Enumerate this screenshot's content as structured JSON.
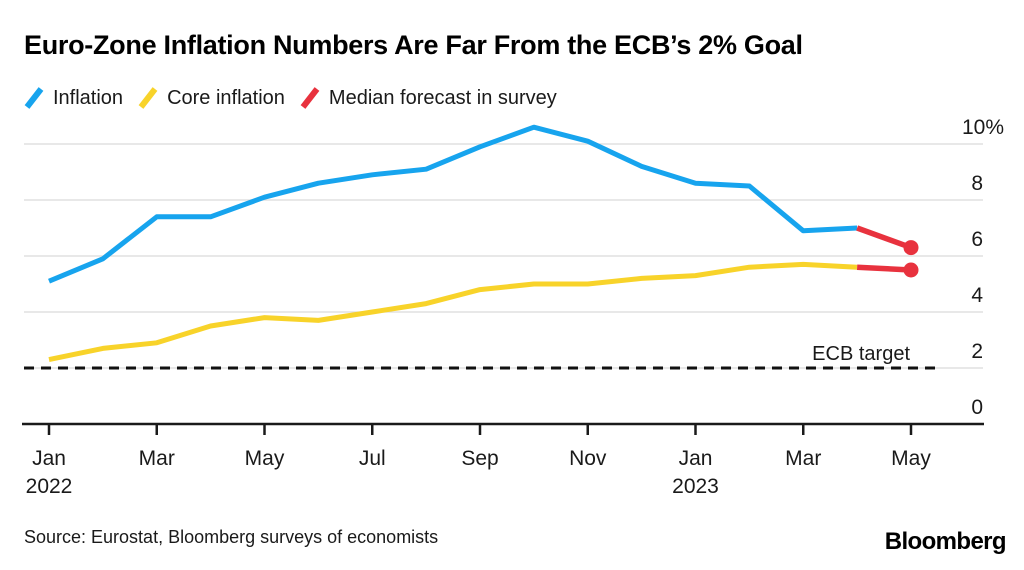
{
  "title": "Euro-Zone Inflation Numbers Are Far From the ECB’s 2% Goal",
  "legend": {
    "items": [
      {
        "label": "Inflation",
        "color": "#17A4EE",
        "icon": "line-swatch-icon"
      },
      {
        "label": "Core inflation",
        "color": "#F8D32A",
        "icon": "line-swatch-icon"
      },
      {
        "label": "Median forecast in survey",
        "color": "#E8323E",
        "icon": "line-swatch-icon"
      }
    ]
  },
  "chart_data": {
    "type": "line",
    "x": [
      "Jan 2022",
      "Feb 2022",
      "Mar 2022",
      "Apr 2022",
      "May 2022",
      "Jun 2022",
      "Jul 2022",
      "Aug 2022",
      "Sep 2022",
      "Oct 2022",
      "Nov 2022",
      "Dec 2022",
      "Jan 2023",
      "Feb 2023",
      "Mar 2023",
      "Apr 2023",
      "May 2023"
    ],
    "series": [
      {
        "name": "Inflation",
        "color": "#17A4EE",
        "values": [
          5.1,
          5.9,
          7.4,
          7.4,
          8.1,
          8.6,
          8.9,
          9.1,
          9.9,
          10.6,
          10.1,
          9.2,
          8.6,
          8.5,
          6.9,
          7.0
        ]
      },
      {
        "name": "Core inflation",
        "color": "#F8D32A",
        "values": [
          2.3,
          2.7,
          2.9,
          3.5,
          3.8,
          3.7,
          4.0,
          4.3,
          4.8,
          5.0,
          5.0,
          5.2,
          5.3,
          5.6,
          5.7,
          5.6
        ]
      }
    ],
    "forecast": {
      "name": "Median forecast in survey",
      "color": "#E8323E",
      "points": [
        {
          "series": "Inflation",
          "x": "May 2023",
          "month_index": 16,
          "value": 6.3
        },
        {
          "series": "Core inflation",
          "x": "May 2023",
          "month_index": 16,
          "value": 5.5
        }
      ]
    },
    "annotation": {
      "label": "ECB target",
      "value": 2
    },
    "ylim": [
      0,
      10
    ],
    "grid": true,
    "legend_position": "top",
    "yticks": [
      {
        "value": 10,
        "label": "10%"
      },
      {
        "value": 8,
        "label": "8"
      },
      {
        "value": 6,
        "label": "6"
      },
      {
        "value": 4,
        "label": "4"
      },
      {
        "value": 2,
        "label": "2"
      },
      {
        "value": 0,
        "label": "0"
      }
    ],
    "xticks": [
      {
        "month_index": 0,
        "label": "Jan",
        "sub": "2022"
      },
      {
        "month_index": 2,
        "label": "Mar",
        "sub": ""
      },
      {
        "month_index": 4,
        "label": "May",
        "sub": ""
      },
      {
        "month_index": 6,
        "label": "Jul",
        "sub": ""
      },
      {
        "month_index": 8,
        "label": "Sep",
        "sub": ""
      },
      {
        "month_index": 10,
        "label": "Nov",
        "sub": ""
      },
      {
        "month_index": 12,
        "label": "Jan",
        "sub": "2023"
      },
      {
        "month_index": 14,
        "label": "Mar",
        "sub": ""
      },
      {
        "month_index": 16,
        "label": "May",
        "sub": ""
      }
    ]
  },
  "colors": {
    "gridline": "#DBDBDB",
    "axis": "#1a1a1a",
    "target_line": "#111111",
    "text": "#1a1a1a"
  },
  "footer": {
    "source": "Source: Eurostat, Bloomberg surveys of economists",
    "logo": "Bloomberg"
  }
}
